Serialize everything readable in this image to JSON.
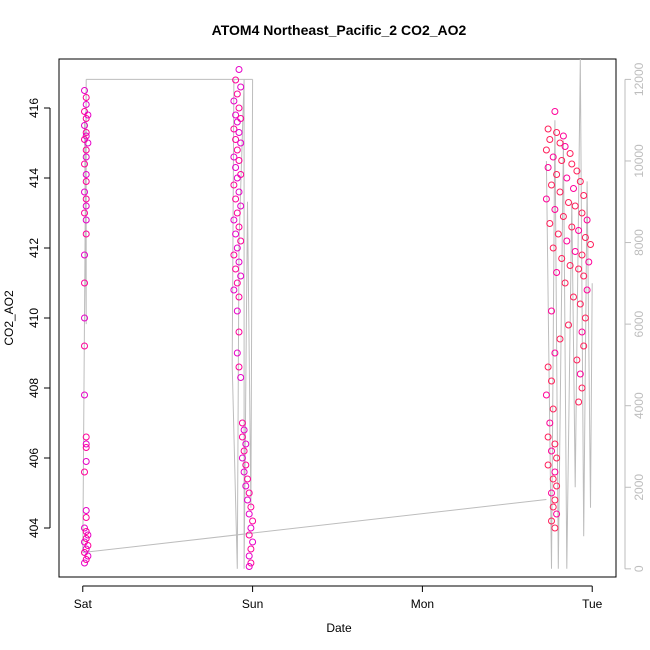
{
  "chart_data": {
    "type": "scatter",
    "title": "ATOM4 Northeast_Pacific_2 CO2_AO2",
    "xlabel": "Date",
    "ylabel": "CO2_AO2",
    "x_ticks": [
      "Sat",
      "Sun",
      "Mon",
      "Tue"
    ],
    "xlim_days": [
      -0.14,
      3.14
    ],
    "ylim": [
      402.6,
      417.4
    ],
    "y_ticks": [
      404,
      406,
      408,
      410,
      412,
      414,
      416
    ],
    "right_axis": {
      "ylim": [
        -200,
        12500
      ],
      "ticks": [
        0,
        2000,
        4000,
        6000,
        8000,
        10000,
        12000
      ],
      "line_color": "#bdbdbd"
    },
    "point_colors": [
      "#e600c8",
      "#ff0099",
      "#ff1f5a"
    ],
    "grid": false,
    "series": [
      {
        "segment": "Sat",
        "x_day_range": [
          0.0,
          0.03
        ],
        "points": [
          [
            0.01,
            416.5
          ],
          [
            0.02,
            416.3
          ],
          [
            0.02,
            416.1
          ],
          [
            0.01,
            415.9
          ],
          [
            0.03,
            415.8
          ],
          [
            0.02,
            415.7
          ],
          [
            0.01,
            415.5
          ],
          [
            0.02,
            415.3
          ],
          [
            0.02,
            415.2
          ],
          [
            0.01,
            415.1
          ],
          [
            0.03,
            415.0
          ],
          [
            0.02,
            414.8
          ],
          [
            0.02,
            414.6
          ],
          [
            0.01,
            414.4
          ],
          [
            0.02,
            414.1
          ],
          [
            0.02,
            413.9
          ],
          [
            0.01,
            413.6
          ],
          [
            0.02,
            413.4
          ],
          [
            0.02,
            413.2
          ],
          [
            0.01,
            413.0
          ],
          [
            0.02,
            412.8
          ],
          [
            0.02,
            412.4
          ],
          [
            0.01,
            411.8
          ],
          [
            0.01,
            411.0
          ],
          [
            0.01,
            410.0
          ],
          [
            0.01,
            409.2
          ],
          [
            0.01,
            407.8
          ],
          [
            0.02,
            406.6
          ],
          [
            0.02,
            406.4
          ],
          [
            0.02,
            406.3
          ],
          [
            0.02,
            405.9
          ],
          [
            0.01,
            405.6
          ],
          [
            0.02,
            404.5
          ],
          [
            0.02,
            404.3
          ],
          [
            0.01,
            404.0
          ],
          [
            0.02,
            403.9
          ],
          [
            0.03,
            403.8
          ],
          [
            0.02,
            403.7
          ],
          [
            0.01,
            403.6
          ],
          [
            0.03,
            403.5
          ],
          [
            0.02,
            403.4
          ],
          [
            0.01,
            403.3
          ],
          [
            0.03,
            403.2
          ],
          [
            0.02,
            403.1
          ],
          [
            0.01,
            403.0
          ]
        ]
      },
      {
        "segment": "Sun",
        "x_day_range": [
          0.88,
          1.03
        ],
        "points": [
          [
            0.92,
            417.1
          ],
          [
            0.9,
            416.8
          ],
          [
            0.93,
            416.6
          ],
          [
            0.91,
            416.4
          ],
          [
            0.89,
            416.2
          ],
          [
            0.92,
            416.0
          ],
          [
            0.9,
            415.8
          ],
          [
            0.93,
            415.7
          ],
          [
            0.91,
            415.6
          ],
          [
            0.89,
            415.4
          ],
          [
            0.92,
            415.3
          ],
          [
            0.9,
            415.1
          ],
          [
            0.93,
            415.0
          ],
          [
            0.91,
            414.8
          ],
          [
            0.89,
            414.6
          ],
          [
            0.92,
            414.5
          ],
          [
            0.9,
            414.3
          ],
          [
            0.93,
            414.1
          ],
          [
            0.91,
            414.0
          ],
          [
            0.89,
            413.8
          ],
          [
            0.92,
            413.6
          ],
          [
            0.9,
            413.4
          ],
          [
            0.93,
            413.2
          ],
          [
            0.91,
            413.0
          ],
          [
            0.89,
            412.8
          ],
          [
            0.92,
            412.6
          ],
          [
            0.9,
            412.4
          ],
          [
            0.93,
            412.2
          ],
          [
            0.91,
            412.0
          ],
          [
            0.89,
            411.8
          ],
          [
            0.92,
            411.6
          ],
          [
            0.9,
            411.4
          ],
          [
            0.93,
            411.2
          ],
          [
            0.91,
            411.0
          ],
          [
            0.89,
            410.8
          ],
          [
            0.92,
            410.6
          ],
          [
            0.91,
            410.2
          ],
          [
            0.92,
            409.6
          ],
          [
            0.91,
            409.0
          ],
          [
            0.92,
            408.6
          ],
          [
            0.93,
            408.3
          ],
          [
            0.94,
            407.0
          ],
          [
            0.95,
            406.8
          ],
          [
            0.94,
            406.6
          ],
          [
            0.96,
            406.4
          ],
          [
            0.95,
            406.2
          ],
          [
            0.94,
            406.0
          ],
          [
            0.96,
            405.8
          ],
          [
            0.95,
            405.6
          ],
          [
            0.97,
            405.4
          ],
          [
            0.96,
            405.2
          ],
          [
            0.98,
            405.0
          ],
          [
            0.97,
            404.8
          ],
          [
            0.99,
            404.6
          ],
          [
            0.98,
            404.4
          ],
          [
            1.0,
            404.2
          ],
          [
            0.99,
            404.0
          ],
          [
            0.98,
            403.8
          ],
          [
            1.0,
            403.6
          ],
          [
            0.99,
            403.4
          ],
          [
            0.98,
            403.2
          ],
          [
            0.99,
            403.0
          ],
          [
            0.98,
            402.9
          ]
        ]
      },
      {
        "segment": "Tue",
        "x_day_range": [
          2.72,
          3.0
        ],
        "points": [
          [
            2.78,
            415.9
          ],
          [
            2.74,
            415.4
          ],
          [
            2.79,
            415.3
          ],
          [
            2.83,
            415.2
          ],
          [
            2.75,
            415.1
          ],
          [
            2.81,
            415.0
          ],
          [
            2.84,
            414.9
          ],
          [
            2.73,
            414.8
          ],
          [
            2.87,
            414.7
          ],
          [
            2.77,
            414.6
          ],
          [
            2.82,
            414.5
          ],
          [
            2.88,
            414.4
          ],
          [
            2.74,
            414.3
          ],
          [
            2.91,
            414.2
          ],
          [
            2.79,
            414.1
          ],
          [
            2.85,
            414.0
          ],
          [
            2.93,
            413.9
          ],
          [
            2.76,
            413.8
          ],
          [
            2.89,
            413.7
          ],
          [
            2.81,
            413.6
          ],
          [
            2.95,
            413.5
          ],
          [
            2.73,
            413.4
          ],
          [
            2.86,
            413.3
          ],
          [
            2.9,
            413.2
          ],
          [
            2.78,
            413.1
          ],
          [
            2.94,
            413.0
          ],
          [
            2.83,
            412.9
          ],
          [
            2.97,
            412.8
          ],
          [
            2.75,
            412.7
          ],
          [
            2.88,
            412.6
          ],
          [
            2.92,
            412.5
          ],
          [
            2.8,
            412.4
          ],
          [
            2.96,
            412.3
          ],
          [
            2.85,
            412.2
          ],
          [
            2.99,
            412.1
          ],
          [
            2.77,
            412.0
          ],
          [
            2.9,
            411.9
          ],
          [
            2.94,
            411.8
          ],
          [
            2.82,
            411.7
          ],
          [
            2.98,
            411.6
          ],
          [
            2.87,
            411.5
          ],
          [
            2.92,
            411.4
          ],
          [
            2.79,
            411.3
          ],
          [
            2.95,
            411.2
          ],
          [
            2.84,
            411.0
          ],
          [
            2.97,
            410.8
          ],
          [
            2.89,
            410.6
          ],
          [
            2.93,
            410.4
          ],
          [
            2.76,
            410.2
          ],
          [
            2.96,
            410.0
          ],
          [
            2.86,
            409.8
          ],
          [
            2.94,
            409.6
          ],
          [
            2.81,
            409.4
          ],
          [
            2.95,
            409.2
          ],
          [
            2.78,
            409.0
          ],
          [
            2.91,
            408.8
          ],
          [
            2.74,
            408.6
          ],
          [
            2.93,
            408.4
          ],
          [
            2.76,
            408.2
          ],
          [
            2.94,
            408.0
          ],
          [
            2.73,
            407.8
          ],
          [
            2.92,
            407.6
          ],
          [
            2.77,
            407.4
          ],
          [
            2.75,
            407.0
          ],
          [
            2.74,
            406.6
          ],
          [
            2.78,
            406.4
          ],
          [
            2.76,
            406.2
          ],
          [
            2.79,
            406.0
          ],
          [
            2.74,
            405.8
          ],
          [
            2.78,
            405.6
          ],
          [
            2.77,
            405.4
          ],
          [
            2.79,
            405.2
          ],
          [
            2.76,
            405.0
          ],
          [
            2.78,
            404.8
          ],
          [
            2.77,
            404.6
          ],
          [
            2.79,
            404.4
          ],
          [
            2.76,
            404.2
          ],
          [
            2.78,
            404.0
          ]
        ]
      }
    ],
    "right_line_segments": [
      [
        [
          0.0,
          400
        ],
        [
          0.02,
          12000
        ],
        [
          0.02,
          6000
        ],
        [
          0.01,
          11000
        ]
      ],
      [
        [
          0.0,
          400
        ],
        [
          2.73,
          1700
        ]
      ],
      [
        [
          0.02,
          12000
        ],
        [
          1.0,
          12000
        ]
      ],
      [
        [
          0.89,
          12000
        ],
        [
          0.88,
          5000
        ],
        [
          0.91,
          0
        ],
        [
          0.92,
          8000
        ],
        [
          0.95,
          12000
        ],
        [
          0.95,
          0
        ],
        [
          0.97,
          9000
        ],
        [
          0.99,
          1500
        ],
        [
          1.0,
          12000
        ]
      ],
      [
        [
          2.73,
          10000
        ],
        [
          2.76,
          0
        ],
        [
          2.78,
          11000
        ],
        [
          2.8,
          0
        ],
        [
          2.83,
          10500
        ],
        [
          2.85,
          0
        ],
        [
          2.88,
          9000
        ],
        [
          2.9,
          2000
        ],
        [
          2.93,
          12500
        ],
        [
          2.95,
          800
        ],
        [
          2.97,
          9500
        ],
        [
          2.99,
          1500
        ],
        [
          3.0,
          7000
        ]
      ]
    ]
  }
}
